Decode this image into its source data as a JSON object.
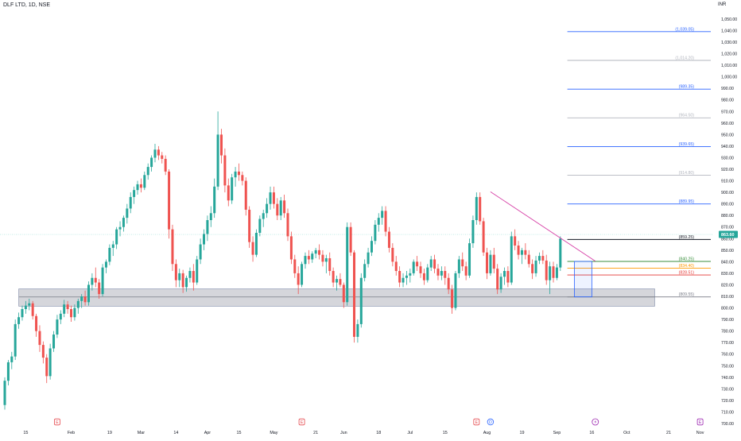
{
  "header": {
    "title": "DLF LTD, 1D, NSE",
    "currency": "INR"
  },
  "colors": {
    "up": "#26a69a",
    "down": "#ef5350",
    "trendline": "#d63fa6",
    "zone_fill": "#b2b5be",
    "zone_line": "#787b86",
    "last_price_bg": "#26a69a",
    "last_price_line": "#9ee0d8",
    "event_earnings": "#e5484d",
    "event_dividend": "#2962ff",
    "event_split": "#9c27b0"
  },
  "chart_data": {
    "type": "candlestick",
    "symbol": "DLF LTD",
    "interval": "1D",
    "exchange": "NSE",
    "last_price": 863.6,
    "ylim": [
      700,
      1055
    ],
    "y_ticks": [
      700,
      710,
      720,
      730,
      740,
      750,
      760,
      770,
      780,
      790,
      800,
      810,
      820,
      830,
      840,
      850,
      860,
      870,
      880,
      890,
      900,
      910,
      920,
      930,
      940,
      950,
      960,
      970,
      980,
      990,
      1000,
      1010,
      1020,
      1030,
      1040,
      1050
    ],
    "y_tick_labels": [
      "700.00",
      "710.00",
      "720.00",
      "730.00",
      "740.00",
      "750.00",
      "760.00",
      "770.00",
      "780.00",
      "790.00",
      "800.00",
      "810.00",
      "820.00",
      "830.00",
      "840.00",
      "850.00",
      "860.00",
      "870.00",
      "880.00",
      "890.00",
      "900.00",
      "910.00",
      "920.00",
      "930.00",
      "940.00",
      "950.00",
      "960.00",
      "970.00",
      "980.00",
      "990.00",
      "1,000.00",
      "1,010.00",
      "1,020.00",
      "1,030.00",
      "1,040.00",
      "1,050.00"
    ],
    "x_ticks": [
      {
        "label": "15",
        "index": 6
      },
      {
        "label": "Feb",
        "index": 19
      },
      {
        "label": "19",
        "index": 30
      },
      {
        "label": "Mar",
        "index": 39
      },
      {
        "label": "14",
        "index": 49
      },
      {
        "label": "Apr",
        "index": 58
      },
      {
        "label": "15",
        "index": 67
      },
      {
        "label": "May",
        "index": 77
      },
      {
        "label": "21",
        "index": 89
      },
      {
        "label": "Jun",
        "index": 97
      },
      {
        "label": "18",
        "index": 107
      },
      {
        "label": "Jul",
        "index": 116
      },
      {
        "label": "15",
        "index": 126
      },
      {
        "label": "Aug",
        "index": 138
      },
      {
        "label": "19",
        "index": 148
      },
      {
        "label": "Sep",
        "index": 158
      },
      {
        "label": "16",
        "index": 168
      },
      {
        "label": "Oct",
        "index": 178
      },
      {
        "label": "21",
        "index": 190
      },
      {
        "label": "Nov",
        "index": 199
      }
    ],
    "ohlc": [
      [
        716,
        740,
        712,
        737
      ],
      [
        737,
        755,
        733,
        753
      ],
      [
        753,
        762,
        747,
        758
      ],
      [
        758,
        790,
        755,
        786
      ],
      [
        786,
        796,
        782,
        792
      ],
      [
        792,
        802,
        789,
        799
      ],
      [
        799,
        806,
        795,
        802
      ],
      [
        802,
        808,
        798,
        804
      ],
      [
        804,
        806,
        790,
        793
      ],
      [
        793,
        795,
        775,
        780
      ],
      [
        780,
        785,
        762,
        768
      ],
      [
        768,
        771,
        752,
        757
      ],
      [
        757,
        760,
        735,
        741
      ],
      [
        741,
        769,
        738,
        765
      ],
      [
        765,
        780,
        762,
        777
      ],
      [
        777,
        794,
        774,
        790
      ],
      [
        790,
        798,
        786,
        795
      ],
      [
        795,
        807,
        792,
        803
      ],
      [
        803,
        806,
        795,
        799
      ],
      [
        799,
        802,
        788,
        792
      ],
      [
        792,
        803,
        789,
        800
      ],
      [
        800,
        808,
        795,
        806
      ],
      [
        806,
        812,
        800,
        810
      ],
      [
        810,
        815,
        802,
        805
      ],
      [
        805,
        823,
        802,
        820
      ],
      [
        820,
        830,
        815,
        826
      ],
      [
        826,
        835,
        818,
        822
      ],
      [
        822,
        825,
        808,
        812
      ],
      [
        812,
        838,
        810,
        835
      ],
      [
        835,
        842,
        830,
        840
      ],
      [
        840,
        855,
        837,
        852
      ],
      [
        852,
        858,
        845,
        855
      ],
      [
        855,
        870,
        851,
        868
      ],
      [
        868,
        875,
        862,
        870
      ],
      [
        870,
        880,
        866,
        878
      ],
      [
        878,
        890,
        873,
        886
      ],
      [
        886,
        900,
        882,
        896
      ],
      [
        896,
        905,
        890,
        902
      ],
      [
        902,
        910,
        898,
        907
      ],
      [
        907,
        912,
        900,
        904
      ],
      [
        904,
        918,
        902,
        915
      ],
      [
        915,
        925,
        911,
        922
      ],
      [
        922,
        932,
        918,
        930
      ],
      [
        930,
        942,
        926,
        937
      ],
      [
        937,
        940,
        928,
        932
      ],
      [
        932,
        935,
        925,
        929
      ],
      [
        929,
        932,
        915,
        918
      ],
      [
        918,
        920,
        860,
        868
      ],
      [
        868,
        872,
        832,
        838
      ],
      [
        838,
        842,
        818,
        824
      ],
      [
        824,
        834,
        818,
        830
      ],
      [
        830,
        833,
        813,
        818
      ],
      [
        818,
        828,
        814,
        826
      ],
      [
        826,
        835,
        822,
        832
      ],
      [
        832,
        838,
        815,
        822
      ],
      [
        822,
        845,
        820,
        842
      ],
      [
        842,
        860,
        838,
        855
      ],
      [
        855,
        868,
        850,
        864
      ],
      [
        864,
        880,
        858,
        876
      ],
      [
        876,
        888,
        870,
        882
      ],
      [
        882,
        912,
        878,
        905
      ],
      [
        905,
        970,
        902,
        950
      ],
      [
        950,
        955,
        925,
        932
      ],
      [
        932,
        938,
        900,
        906
      ],
      [
        906,
        912,
        888,
        893
      ],
      [
        893,
        916,
        890,
        913
      ],
      [
        913,
        922,
        905,
        918
      ],
      [
        918,
        925,
        910,
        915
      ],
      [
        915,
        918,
        906,
        910
      ],
      [
        910,
        913,
        880,
        885
      ],
      [
        885,
        888,
        852,
        857
      ],
      [
        857,
        862,
        840,
        846
      ],
      [
        846,
        868,
        844,
        865
      ],
      [
        865,
        880,
        862,
        877
      ],
      [
        877,
        885,
        870,
        882
      ],
      [
        882,
        895,
        878,
        890
      ],
      [
        890,
        905,
        885,
        900
      ],
      [
        900,
        905,
        886,
        890
      ],
      [
        890,
        895,
        876,
        880
      ],
      [
        880,
        896,
        876,
        893
      ],
      [
        893,
        898,
        878,
        882
      ],
      [
        882,
        886,
        858,
        862
      ],
      [
        862,
        866,
        838,
        842
      ],
      [
        842,
        846,
        826,
        830
      ],
      [
        830,
        836,
        812,
        820
      ],
      [
        820,
        840,
        818,
        838
      ],
      [
        838,
        848,
        834,
        845
      ],
      [
        845,
        850,
        838,
        842
      ],
      [
        842,
        849,
        839,
        847
      ],
      [
        847,
        852,
        843,
        850
      ],
      [
        850,
        855,
        842,
        846
      ],
      [
        846,
        850,
        836,
        840
      ],
      [
        840,
        846,
        830,
        843
      ],
      [
        843,
        848,
        828,
        832
      ],
      [
        832,
        835,
        818,
        822
      ],
      [
        822,
        828,
        815,
        825
      ],
      [
        825,
        830,
        818,
        820
      ],
      [
        820,
        822,
        800,
        805
      ],
      [
        805,
        874,
        802,
        870
      ],
      [
        870,
        874,
        845,
        848
      ],
      [
        848,
        850,
        770,
        775
      ],
      [
        775,
        790,
        770,
        786
      ],
      [
        786,
        830,
        783,
        826
      ],
      [
        826,
        842,
        823,
        838
      ],
      [
        838,
        852,
        835,
        848
      ],
      [
        848,
        862,
        845,
        858
      ],
      [
        858,
        876,
        855,
        872
      ],
      [
        872,
        882,
        866,
        878
      ],
      [
        878,
        888,
        872,
        884
      ],
      [
        884,
        888,
        862,
        866
      ],
      [
        866,
        870,
        848,
        852
      ],
      [
        852,
        856,
        836,
        840
      ],
      [
        840,
        845,
        828,
        832
      ],
      [
        832,
        836,
        818,
        822
      ],
      [
        822,
        830,
        818,
        826
      ],
      [
        826,
        832,
        820,
        828
      ],
      [
        828,
        834,
        822,
        830
      ],
      [
        830,
        842,
        828,
        840
      ],
      [
        840,
        845,
        832,
        836
      ],
      [
        836,
        840,
        826,
        830
      ],
      [
        830,
        834,
        820,
        824
      ],
      [
        824,
        838,
        822,
        835
      ],
      [
        835,
        845,
        832,
        842
      ],
      [
        842,
        846,
        830,
        834
      ],
      [
        834,
        838,
        824,
        828
      ],
      [
        828,
        836,
        824,
        832
      ],
      [
        832,
        836,
        820,
        826
      ],
      [
        826,
        830,
        812,
        816
      ],
      [
        816,
        820,
        795,
        800
      ],
      [
        800,
        832,
        798,
        830
      ],
      [
        830,
        845,
        826,
        842
      ],
      [
        842,
        848,
        832,
        836
      ],
      [
        836,
        840,
        824,
        828
      ],
      [
        828,
        860,
        826,
        856
      ],
      [
        856,
        880,
        852,
        876
      ],
      [
        876,
        900,
        872,
        896
      ],
      [
        896,
        900,
        872,
        875
      ],
      [
        875,
        878,
        845,
        848
      ],
      [
        848,
        852,
        825,
        830
      ],
      [
        830,
        850,
        828,
        846
      ],
      [
        846,
        852,
        830,
        834
      ],
      [
        834,
        838,
        812,
        816
      ],
      [
        816,
        830,
        813,
        827
      ],
      [
        827,
        835,
        820,
        832
      ],
      [
        832,
        836,
        818,
        822
      ],
      [
        822,
        866,
        820,
        862
      ],
      [
        862,
        868,
        850,
        854
      ],
      [
        854,
        858,
        842,
        846
      ],
      [
        846,
        852,
        838,
        850
      ],
      [
        850,
        856,
        842,
        846
      ],
      [
        846,
        850,
        835,
        838
      ],
      [
        838,
        842,
        825,
        830
      ],
      [
        830,
        845,
        827,
        841
      ],
      [
        841,
        848,
        838,
        845
      ],
      [
        845,
        850,
        838,
        841
      ],
      [
        841,
        846,
        820,
        824
      ],
      [
        824,
        840,
        812,
        836
      ],
      [
        836,
        840,
        822,
        826
      ],
      [
        826,
        838,
        824,
        835
      ],
      [
        835,
        862,
        832,
        860
      ]
    ],
    "trendline": {
      "start": [
        139,
        900.5
      ],
      "end": [
        169,
        840.5
      ]
    },
    "support_zone": {
      "top": 816.5,
      "bottom": 801.5,
      "mid": 809.5,
      "from_index": 4,
      "to_index": 186
    },
    "fib_levels": [
      {
        "value": 859.25,
        "label": "(859.25)",
        "color": "#131722",
        "from": 161
      },
      {
        "value": 840.25,
        "label": "(840.25)",
        "color": "#388e3c",
        "from": 161
      },
      {
        "value": 834.4,
        "label": "(834.40)",
        "color": "#ff9800",
        "from": 161
      },
      {
        "value": 828.51,
        "label": "(828.51)",
        "color": "#e53935",
        "from": 161
      },
      {
        "value": 809.55,
        "label": "(809.55)",
        "color": "#787b86",
        "from": 161
      },
      {
        "value": 889.95,
        "label": "(889.95)",
        "color": "#2962ff",
        "from": 161
      },
      {
        "value": 914.8,
        "label": "(914.80)",
        "color": "#b2b5be",
        "from": 161
      },
      {
        "value": 939.65,
        "label": "(939.65)",
        "color": "#2962ff",
        "from": 161
      },
      {
        "value": 964.5,
        "label": "(964.50)",
        "color": "#b2b5be",
        "from": 161
      },
      {
        "value": 989.35,
        "label": "(989.35)",
        "color": "#2962ff",
        "from": 161
      },
      {
        "value": 1014.2,
        "label": "(1,014.20)",
        "color": "#b2b5be",
        "from": 161
      },
      {
        "value": 1039.05,
        "label": "(1,039.05)",
        "color": "#2962ff",
        "from": 161
      }
    ],
    "measure_box": {
      "from_index": 163,
      "to_index": 168,
      "top": 840.25,
      "bottom": 809.55
    },
    "last_price_label": "863.60",
    "events": [
      {
        "index": 15,
        "type": "E"
      },
      {
        "index": 85,
        "type": "E"
      },
      {
        "index": 135,
        "type": "E"
      },
      {
        "index": 139,
        "type": "D"
      },
      {
        "index": 169,
        "type": "split"
      },
      {
        "index": 199,
        "type": "E"
      }
    ]
  }
}
